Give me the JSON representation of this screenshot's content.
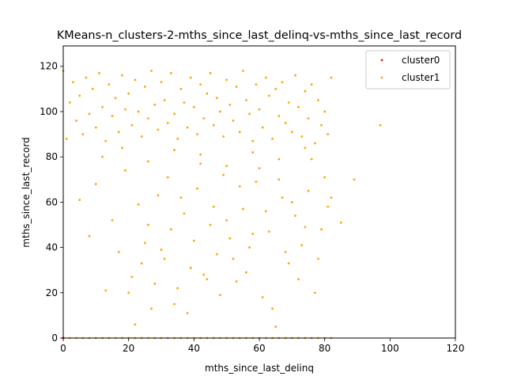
{
  "chart_data": {
    "type": "scatter",
    "title": "KMeans-n_clusters-2-mths_since_last_delinq-vs-mths_since_last_record",
    "xlabel": "mths_since_last_delinq",
    "ylabel": "mths_since_last_record",
    "xlim": [
      0,
      120
    ],
    "ylim": [
      0,
      129
    ],
    "xticks": [
      0,
      20,
      40,
      60,
      80,
      100,
      120
    ],
    "yticks": [
      0,
      20,
      40,
      60,
      80,
      100,
      120
    ],
    "grid": false,
    "legend_position": "top-right",
    "series": [
      {
        "name": "cluster0",
        "color": "#ff0000",
        "points": [
          [
            0,
            0
          ],
          [
            0,
            0
          ]
        ]
      },
      {
        "name": "cluster1",
        "color": "#ffa500",
        "points": [
          [
            0,
            0
          ],
          [
            2,
            0
          ],
          [
            4,
            0
          ],
          [
            6,
            0
          ],
          [
            8,
            0
          ],
          [
            10,
            0
          ],
          [
            12,
            0
          ],
          [
            14,
            0
          ],
          [
            16,
            0
          ],
          [
            18,
            0
          ],
          [
            20,
            0
          ],
          [
            22,
            0
          ],
          [
            24,
            0
          ],
          [
            26,
            0
          ],
          [
            28,
            0
          ],
          [
            30,
            0
          ],
          [
            32,
            0
          ],
          [
            34,
            0
          ],
          [
            36,
            0
          ],
          [
            38,
            0
          ],
          [
            40,
            0
          ],
          [
            42,
            0
          ],
          [
            44,
            0
          ],
          [
            46,
            0
          ],
          [
            48,
            0
          ],
          [
            50,
            0
          ],
          [
            52,
            0
          ],
          [
            54,
            0
          ],
          [
            56,
            0
          ],
          [
            58,
            0
          ],
          [
            60,
            0
          ],
          [
            62,
            0
          ],
          [
            64,
            0
          ],
          [
            66,
            0
          ],
          [
            68,
            0
          ],
          [
            70,
            0
          ],
          [
            72,
            0
          ],
          [
            74,
            0
          ],
          [
            76,
            0
          ],
          [
            78,
            0
          ],
          [
            80,
            0
          ],
          [
            82,
            0
          ],
          [
            0,
            118
          ],
          [
            1,
            88
          ],
          [
            2,
            104
          ],
          [
            3,
            113
          ],
          [
            4,
            96
          ],
          [
            5,
            107
          ],
          [
            6,
            90
          ],
          [
            7,
            115
          ],
          [
            8,
            99
          ],
          [
            9,
            110
          ],
          [
            10,
            93
          ],
          [
            11,
            117
          ],
          [
            12,
            102
          ],
          [
            13,
            87
          ],
          [
            14,
            112
          ],
          [
            15,
            98
          ],
          [
            16,
            106
          ],
          [
            17,
            91
          ],
          [
            18,
            116
          ],
          [
            19,
            101
          ],
          [
            20,
            108
          ],
          [
            21,
            94
          ],
          [
            22,
            114
          ],
          [
            23,
            100
          ],
          [
            24,
            89
          ],
          [
            25,
            111
          ],
          [
            26,
            97
          ],
          [
            27,
            118
          ],
          [
            28,
            103
          ],
          [
            29,
            92
          ],
          [
            30,
            113
          ],
          [
            31,
            105
          ],
          [
            32,
            95
          ],
          [
            33,
            117
          ],
          [
            34,
            99
          ],
          [
            35,
            88
          ],
          [
            36,
            110
          ],
          [
            37,
            104
          ],
          [
            38,
            93
          ],
          [
            39,
            115
          ],
          [
            40,
            102
          ],
          [
            41,
            90
          ],
          [
            42,
            112
          ],
          [
            43,
            97
          ],
          [
            44,
            108
          ],
          [
            45,
            117
          ],
          [
            46,
            94
          ],
          [
            47,
            106
          ],
          [
            48,
            100
          ],
          [
            49,
            89
          ],
          [
            50,
            114
          ],
          [
            51,
            103
          ],
          [
            52,
            96
          ],
          [
            53,
            111
          ],
          [
            54,
            91
          ],
          [
            55,
            118
          ],
          [
            56,
            105
          ],
          [
            57,
            99
          ],
          [
            58,
            87
          ],
          [
            59,
            112
          ],
          [
            60,
            101
          ],
          [
            61,
            93
          ],
          [
            62,
            115
          ],
          [
            63,
            107
          ],
          [
            64,
            88
          ],
          [
            65,
            110
          ],
          [
            66,
            98
          ],
          [
            67,
            113
          ],
          [
            68,
            95
          ],
          [
            69,
            104
          ],
          [
            70,
            91
          ],
          [
            71,
            116
          ],
          [
            72,
            102
          ],
          [
            73,
            89
          ],
          [
            74,
            109
          ],
          [
            75,
            97
          ],
          [
            76,
            112
          ],
          [
            77,
            86
          ],
          [
            78,
            105
          ],
          [
            79,
            94
          ],
          [
            80,
            100
          ],
          [
            81,
            90
          ],
          [
            82,
            115
          ],
          [
            5,
            61
          ],
          [
            8,
            45
          ],
          [
            10,
            68
          ],
          [
            13,
            21
          ],
          [
            15,
            52
          ],
          [
            17,
            38
          ],
          [
            19,
            74
          ],
          [
            21,
            27
          ],
          [
            23,
            59
          ],
          [
            25,
            42
          ],
          [
            27,
            13
          ],
          [
            29,
            63
          ],
          [
            31,
            35
          ],
          [
            33,
            48
          ],
          [
            35,
            22
          ],
          [
            37,
            55
          ],
          [
            39,
            31
          ],
          [
            41,
            66
          ],
          [
            43,
            28
          ],
          [
            45,
            50
          ],
          [
            47,
            37
          ],
          [
            49,
            72
          ],
          [
            51,
            44
          ],
          [
            53,
            25
          ],
          [
            55,
            57
          ],
          [
            57,
            40
          ],
          [
            59,
            69
          ],
          [
            61,
            18
          ],
          [
            63,
            47
          ],
          [
            65,
            5
          ],
          [
            67,
            62
          ],
          [
            69,
            33
          ],
          [
            71,
            54
          ],
          [
            73,
            41
          ],
          [
            75,
            65
          ],
          [
            77,
            20
          ],
          [
            79,
            48
          ],
          [
            81,
            58
          ],
          [
            20,
            20
          ],
          [
            22,
            6
          ],
          [
            24,
            33
          ],
          [
            26,
            50
          ],
          [
            28,
            24
          ],
          [
            30,
            39
          ],
          [
            32,
            71
          ],
          [
            34,
            15
          ],
          [
            36,
            62
          ],
          [
            38,
            11
          ],
          [
            40,
            43
          ],
          [
            42,
            77
          ],
          [
            44,
            26
          ],
          [
            46,
            58
          ],
          [
            48,
            19
          ],
          [
            50,
            52
          ],
          [
            52,
            35
          ],
          [
            54,
            67
          ],
          [
            56,
            29
          ],
          [
            58,
            46
          ],
          [
            60,
            75
          ],
          [
            62,
            56
          ],
          [
            64,
            13
          ],
          [
            66,
            70
          ],
          [
            68,
            38
          ],
          [
            70,
            60
          ],
          [
            72,
            26
          ],
          [
            74,
            49
          ],
          [
            76,
            79
          ],
          [
            78,
            35
          ],
          [
            80,
            71
          ],
          [
            82,
            62
          ],
          [
            12,
            80
          ],
          [
            18,
            84
          ],
          [
            26,
            78
          ],
          [
            34,
            83
          ],
          [
            42,
            81
          ],
          [
            50,
            76
          ],
          [
            58,
            82
          ],
          [
            66,
            79
          ],
          [
            74,
            84
          ],
          [
            85,
            51
          ],
          [
            89,
            70
          ],
          [
            97,
            94
          ]
        ]
      }
    ]
  }
}
